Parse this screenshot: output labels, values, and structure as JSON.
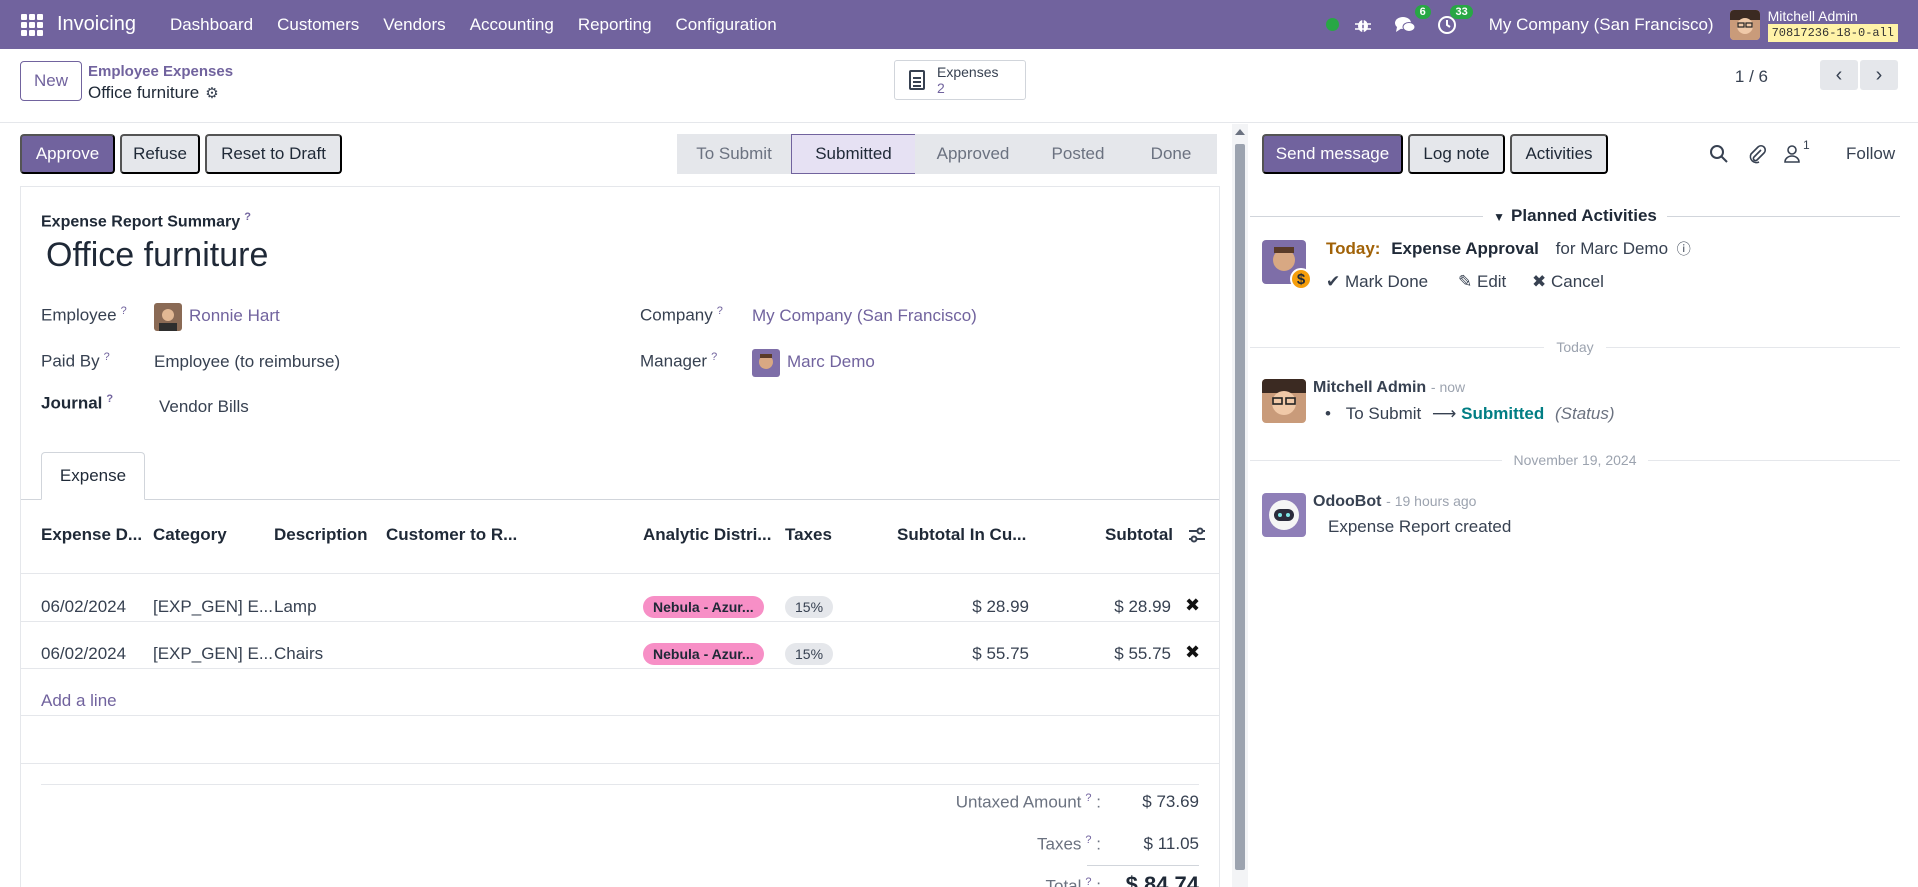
{
  "topnav": {
    "app_name": "Invoicing",
    "menu": [
      "Dashboard",
      "Customers",
      "Vendors",
      "Accounting",
      "Reporting",
      "Configuration"
    ],
    "messages_badge": "6",
    "activities_badge": "33",
    "company": "My Company (San Francisco)",
    "user": "Mitchell Admin",
    "db": "70817236-18-0-all"
  },
  "control": {
    "new_label": "New",
    "breadcrumb_parent": "Employee Expenses",
    "breadcrumb_current": "Office furniture",
    "smart_label": "Expenses",
    "smart_count": "2",
    "pager": "1 / 6"
  },
  "actions": {
    "approve": "Approve",
    "refuse": "Refuse",
    "reset": "Reset to Draft"
  },
  "stages": [
    "To Submit",
    "Submitted",
    "Approved",
    "Posted",
    "Done"
  ],
  "active_stage": "Submitted",
  "form": {
    "summary_label": "Expense Report Summary",
    "title": "Office furniture",
    "employee_label": "Employee",
    "employee": "Ronnie Hart",
    "paid_by_label": "Paid By",
    "paid_by": "Employee (to reimburse)",
    "journal_label": "Journal",
    "journal": "Vendor Bills",
    "company_label": "Company",
    "company": "My Company (San Francisco)",
    "manager_label": "Manager",
    "manager": "Marc Demo",
    "help_mark": "?"
  },
  "tab_label": "Expense",
  "table": {
    "headers": [
      "Expense D...",
      "Category",
      "Description",
      "Customer to R...",
      "Analytic Distri...",
      "Taxes",
      "Subtotal In Cu...",
      "Subtotal"
    ],
    "rows": [
      {
        "date": "06/02/2024",
        "category": "[EXP_GEN] E...",
        "description": "Lamp",
        "analytic": "Nebula - Azur...",
        "tax": "15%",
        "subtotal_cur": "$ 28.99",
        "subtotal": "$ 28.99"
      },
      {
        "date": "06/02/2024",
        "category": "[EXP_GEN] E...",
        "description": "Chairs",
        "analytic": "Nebula - Azur...",
        "tax": "15%",
        "subtotal_cur": "$ 55.75",
        "subtotal": "$ 55.75"
      }
    ],
    "add_line": "Add a line"
  },
  "totals": {
    "untaxed_label": "Untaxed Amount",
    "untaxed": "$ 73.69",
    "taxes_label": "Taxes",
    "taxes": "$ 11.05",
    "total_label": "Total",
    "total": "$ 84.74"
  },
  "chatter": {
    "send_message": "Send message",
    "log_note": "Log note",
    "activities": "Activities",
    "followers_count": "1",
    "follow": "Follow",
    "planned_header": "Planned Activities",
    "activity_when": "Today:",
    "activity_title": "Expense Approval",
    "activity_for": "for Marc Demo",
    "mark_done": "Mark Done",
    "edit": "Edit",
    "cancel": "Cancel",
    "sep_today": "Today",
    "msg1_author": "Mitchell Admin",
    "msg1_time": "- now",
    "msg1_from": "To Submit",
    "msg1_to": "Submitted",
    "msg1_field": "(Status)",
    "sep_date": "November 19, 2024",
    "msg2_author": "OdooBot",
    "msg2_time": "- 19 hours ago",
    "msg2_body": "Expense Report created"
  },
  "colors": {
    "brand": "#71639e",
    "analytic_tag": "#f78fc6",
    "activity_today": "#a16207",
    "status_link": "#017e84"
  }
}
